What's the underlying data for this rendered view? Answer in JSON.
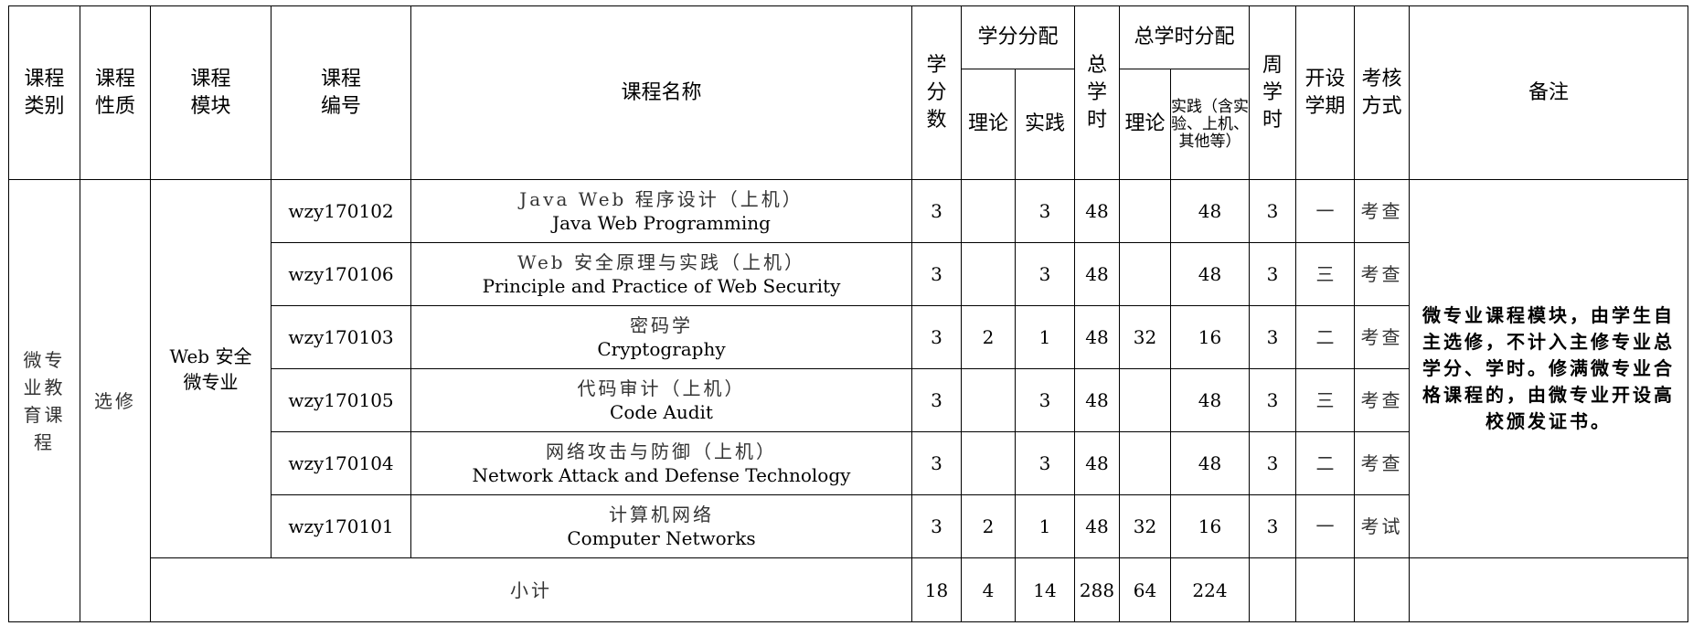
{
  "headers": {
    "category": "课程类别",
    "nature": "课程性质",
    "module": "课程模块",
    "code": "课程编号",
    "name": "课程名称",
    "credits": "学分数",
    "credit_dist": "学分分配",
    "credit_theory": "理论",
    "credit_practice": "实践",
    "total_hours": "总学时",
    "hours_dist": "总学时分配",
    "hours_theory": "理论",
    "hours_practice": "实践（含实验、上机、其他等）",
    "weekly_hours": "周学时",
    "semester": "开设学期",
    "assessment": "考核方式",
    "remarks": "备注"
  },
  "group": {
    "category": "微专业教育课程",
    "nature": "选修",
    "module": "Web 安全微专业",
    "remarks": "微专业课程模块，由学生自主选修，不计入主修专业总学分、学时。修满微专业合格课程的，由微专业开设高校颁发证书。"
  },
  "rows": [
    {
      "code": "wzy170102",
      "name_zh": "Java Web 程序设计（上机）",
      "name_en": "Java Web Programming",
      "credits": "3",
      "credit_theory": "",
      "credit_practice": "3",
      "total_hours": "48",
      "hours_theory": "",
      "hours_practice": "48",
      "weekly": "3",
      "semester": "一",
      "assessment": "考查"
    },
    {
      "code": "wzy170106",
      "name_zh": "Web 安全原理与实践（上机）",
      "name_en": "Principle and Practice of Web Security",
      "credits": "3",
      "credit_theory": "",
      "credit_practice": "3",
      "total_hours": "48",
      "hours_theory": "",
      "hours_practice": "48",
      "weekly": "3",
      "semester": "三",
      "assessment": "考查"
    },
    {
      "code": "wzy170103",
      "name_zh": "密码学",
      "name_en": "Cryptography",
      "credits": "3",
      "credit_theory": "2",
      "credit_practice": "1",
      "total_hours": "48",
      "hours_theory": "32",
      "hours_practice": "16",
      "weekly": "3",
      "semester": "二",
      "assessment": "考查"
    },
    {
      "code": "wzy170105",
      "name_zh": "代码审计（上机）",
      "name_en": "Code Audit",
      "credits": "3",
      "credit_theory": "",
      "credit_practice": "3",
      "total_hours": "48",
      "hours_theory": "",
      "hours_practice": "48",
      "weekly": "3",
      "semester": "三",
      "assessment": "考查"
    },
    {
      "code": "wzy170104",
      "name_zh": "网络攻击与防御（上机）",
      "name_en": "Network Attack and Defense Technology",
      "credits": "3",
      "credit_theory": "",
      "credit_practice": "3",
      "total_hours": "48",
      "hours_theory": "",
      "hours_practice": "48",
      "weekly": "3",
      "semester": "二",
      "assessment": "考查"
    },
    {
      "code": "wzy170101",
      "name_zh": "计算机网络",
      "name_en": "Computer Networks",
      "credits": "3",
      "credit_theory": "2",
      "credit_practice": "1",
      "total_hours": "48",
      "hours_theory": "32",
      "hours_practice": "16",
      "weekly": "3",
      "semester": "一",
      "assessment": "考试"
    }
  ],
  "subtotal": {
    "label": "小计",
    "credits": "18",
    "credit_theory": "4",
    "credit_practice": "14",
    "total_hours": "288",
    "hours_theory": "64",
    "hours_practice": "224"
  }
}
